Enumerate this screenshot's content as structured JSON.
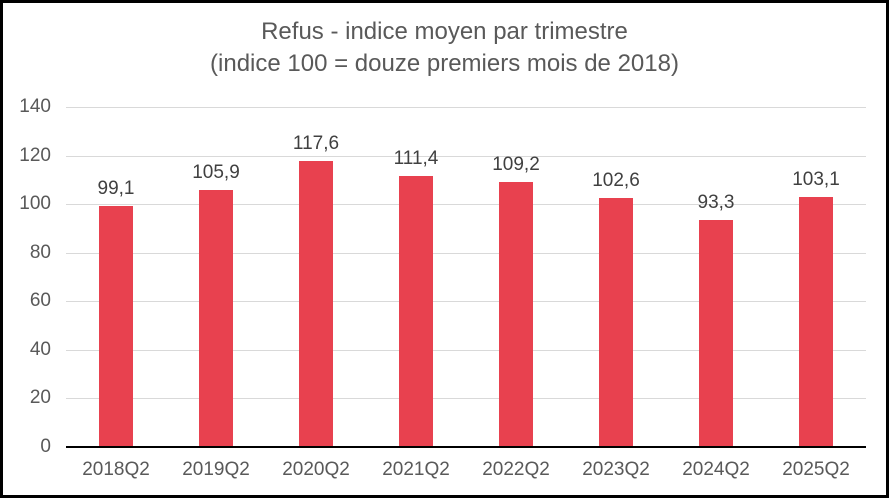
{
  "frame": {
    "border_color": "#000000",
    "background_color": "#ffffff"
  },
  "title": {
    "line1": "Refus - indice moyen par trimestre",
    "line2": "(indice 100 = douze premiers mois de 2018)"
  },
  "chart_data": {
    "type": "bar",
    "title": "Refus - indice moyen par trimestre (indice 100 = douze premiers mois de 2018)",
    "categories": [
      "2018Q2",
      "2019Q2",
      "2020Q2",
      "2021Q2",
      "2022Q2",
      "2023Q2",
      "2024Q2",
      "2025Q2"
    ],
    "values": [
      99.1,
      105.9,
      117.6,
      111.4,
      109.2,
      102.6,
      93.3,
      103.1
    ],
    "value_labels": [
      "99,1",
      "105,9",
      "117,6",
      "111,4",
      "109,2",
      "102,6",
      "93,3",
      "103,1"
    ],
    "xlabel": "",
    "ylabel": "",
    "ylim": [
      0,
      140
    ],
    "yticks": [
      0,
      20,
      40,
      60,
      80,
      100,
      120,
      140
    ],
    "grid": true,
    "legend_position": "none",
    "bar_color": "#E8414F",
    "gridline_color": "#D9D9D9",
    "axis_line_color": "#000000",
    "tick_label_color": "#595959",
    "data_label_color": "#404040",
    "title_color": "#595959"
  }
}
